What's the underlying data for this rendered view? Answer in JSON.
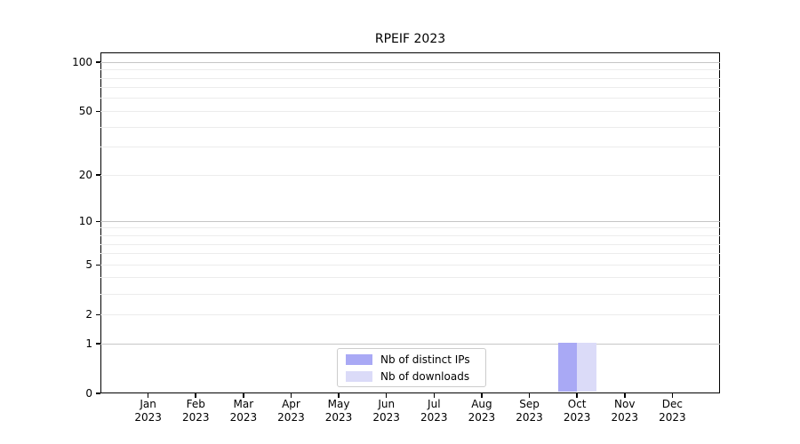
{
  "chart_data": {
    "type": "bar",
    "title": "RPEIF 2023",
    "categories": [
      "Jan",
      "Feb",
      "Mar",
      "Apr",
      "May",
      "Jun",
      "Jul",
      "Aug",
      "Sep",
      "Oct",
      "Nov",
      "Dec"
    ],
    "x_tick_second_line": "2023",
    "series": [
      {
        "name": "Nb of distinct IPs",
        "color": "#a9a9f5",
        "values": [
          0,
          0,
          0,
          0,
          0,
          0,
          0,
          0,
          0,
          1,
          0,
          0
        ]
      },
      {
        "name": "Nb of downloads",
        "color": "#dbdbf8",
        "values": [
          0,
          0,
          0,
          0,
          0,
          0,
          0,
          0,
          0,
          1,
          0,
          0
        ]
      }
    ],
    "yscale": "log1p",
    "ylim": [
      0,
      115
    ],
    "yticks": [
      0,
      1,
      2,
      5,
      10,
      20,
      50,
      100
    ],
    "yticks_minor": [
      2,
      3,
      4,
      5,
      6,
      7,
      8,
      9,
      20,
      30,
      40,
      50,
      60,
      70,
      80,
      90
    ],
    "grid": true,
    "legend_position": "lower center",
    "colors": {
      "major_gridline": "#c6c6c6",
      "minor_gridline": "#ececec",
      "axis": "#000000"
    }
  }
}
